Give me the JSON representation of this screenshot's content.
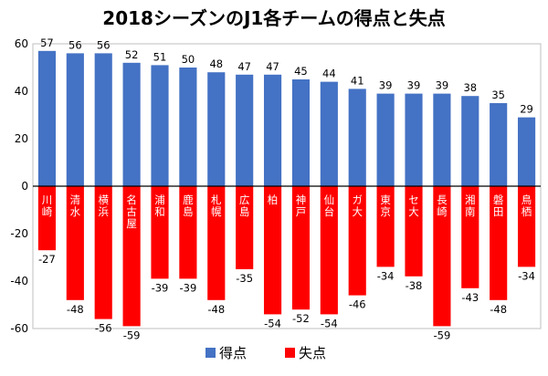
{
  "chart_data": {
    "type": "bar",
    "title": "2018シーズンのJ1各チームの得点と失点",
    "categories": [
      "川崎",
      "清水",
      "横浜",
      "名古屋",
      "浦和",
      "鹿島",
      "札幌",
      "広島",
      "柏",
      "神戸",
      "仙台",
      "ガ大",
      "東京",
      "セ大",
      "長崎",
      "湘南",
      "磐田",
      "鳥栖"
    ],
    "series": [
      {
        "name": "得点",
        "color": "#4472C4",
        "values": [
          57,
          56,
          56,
          52,
          51,
          50,
          48,
          47,
          47,
          45,
          44,
          41,
          39,
          39,
          39,
          38,
          35,
          29
        ]
      },
      {
        "name": "失点",
        "color": "#FF0000",
        "values": [
          -27,
          -48,
          -56,
          -59,
          -39,
          -39,
          -48,
          -35,
          -54,
          -52,
          -54,
          -46,
          -34,
          -38,
          -59,
          -43,
          -48,
          -34
        ]
      }
    ],
    "ylim": [
      -60,
      60
    ],
    "yticks": [
      -60,
      -40,
      -20,
      0,
      20,
      40,
      60
    ],
    "xlabel": "",
    "ylabel": "",
    "legend": "bottom"
  }
}
